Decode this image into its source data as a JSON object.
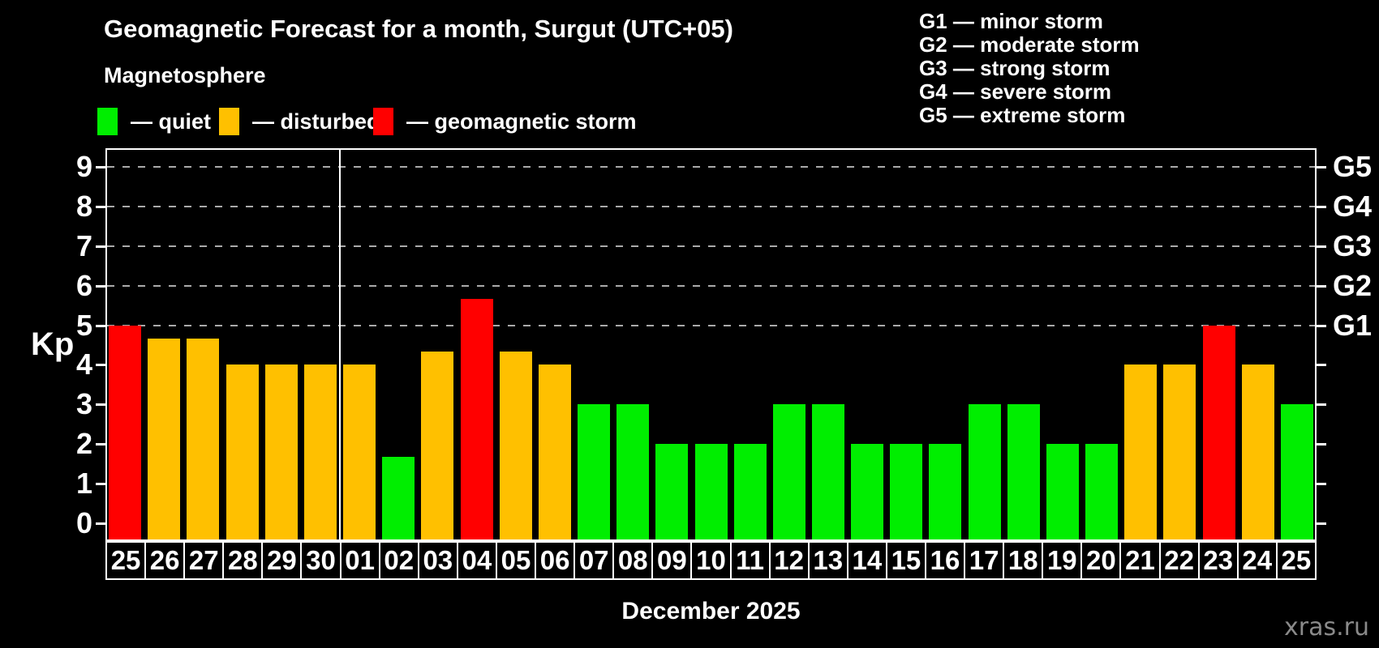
{
  "title": "Geomagnetic Forecast for a month, Surgut (UTC+05)",
  "subtitle": "Magnetosphere",
  "legend": {
    "quiet": "— quiet",
    "disturbed": "— disturbed",
    "storm": "— geomagnetic storm"
  },
  "g_legend": [
    "G1 — minor storm",
    "G2 — moderate storm",
    "G3 — strong storm",
    "G4 — severe storm",
    "G5 — extreme storm"
  ],
  "colors": {
    "quiet": "#00ee00",
    "disturbed": "#ffc000",
    "storm": "#ff0000",
    "grid": "#aaaaaa",
    "frame": "#ffffff",
    "watermark": "#8a8a8a",
    "background": "#000000"
  },
  "axis": {
    "kp_label": "Kp",
    "left_ticks": [
      0,
      1,
      2,
      3,
      4,
      5,
      6,
      7,
      8,
      9
    ],
    "right_labels": [
      {
        "kp": 5,
        "label": "G1"
      },
      {
        "kp": 6,
        "label": "G2"
      },
      {
        "kp": 7,
        "label": "G3"
      },
      {
        "kp": 8,
        "label": "G4"
      },
      {
        "kp": 9,
        "label": "G5"
      }
    ]
  },
  "xlabel": "December 2025",
  "watermark": "xras.ru",
  "chart_data": {
    "type": "bar",
    "title": "Geomagnetic Forecast for a month, Surgut (UTC+05)",
    "ylabel": "Kp",
    "ylim": [
      0,
      9
    ],
    "grid_kp": [
      5,
      6,
      7,
      8,
      9
    ],
    "legend_position": "top",
    "month_separator_after_index": 5,
    "categories": [
      "25",
      "26",
      "27",
      "28",
      "29",
      "30",
      "01",
      "02",
      "03",
      "04",
      "05",
      "06",
      "07",
      "08",
      "09",
      "10",
      "11",
      "12",
      "13",
      "14",
      "15",
      "16",
      "17",
      "18",
      "19",
      "20",
      "21",
      "22",
      "23",
      "24",
      "25"
    ],
    "values": [
      5.0,
      4.67,
      4.67,
      4.0,
      4.0,
      4.0,
      4.0,
      1.67,
      4.33,
      5.67,
      4.33,
      4.0,
      3.0,
      3.0,
      2.0,
      2.0,
      2.0,
      3.0,
      3.0,
      2.0,
      2.0,
      2.0,
      3.0,
      3.0,
      2.0,
      2.0,
      4.0,
      4.0,
      5.0,
      4.0,
      3.0
    ],
    "status": [
      "storm",
      "disturbed",
      "disturbed",
      "disturbed",
      "disturbed",
      "disturbed",
      "disturbed",
      "quiet",
      "disturbed",
      "storm",
      "disturbed",
      "disturbed",
      "quiet",
      "quiet",
      "quiet",
      "quiet",
      "quiet",
      "quiet",
      "quiet",
      "quiet",
      "quiet",
      "quiet",
      "quiet",
      "quiet",
      "quiet",
      "quiet",
      "disturbed",
      "disturbed",
      "storm",
      "disturbed",
      "quiet"
    ]
  }
}
